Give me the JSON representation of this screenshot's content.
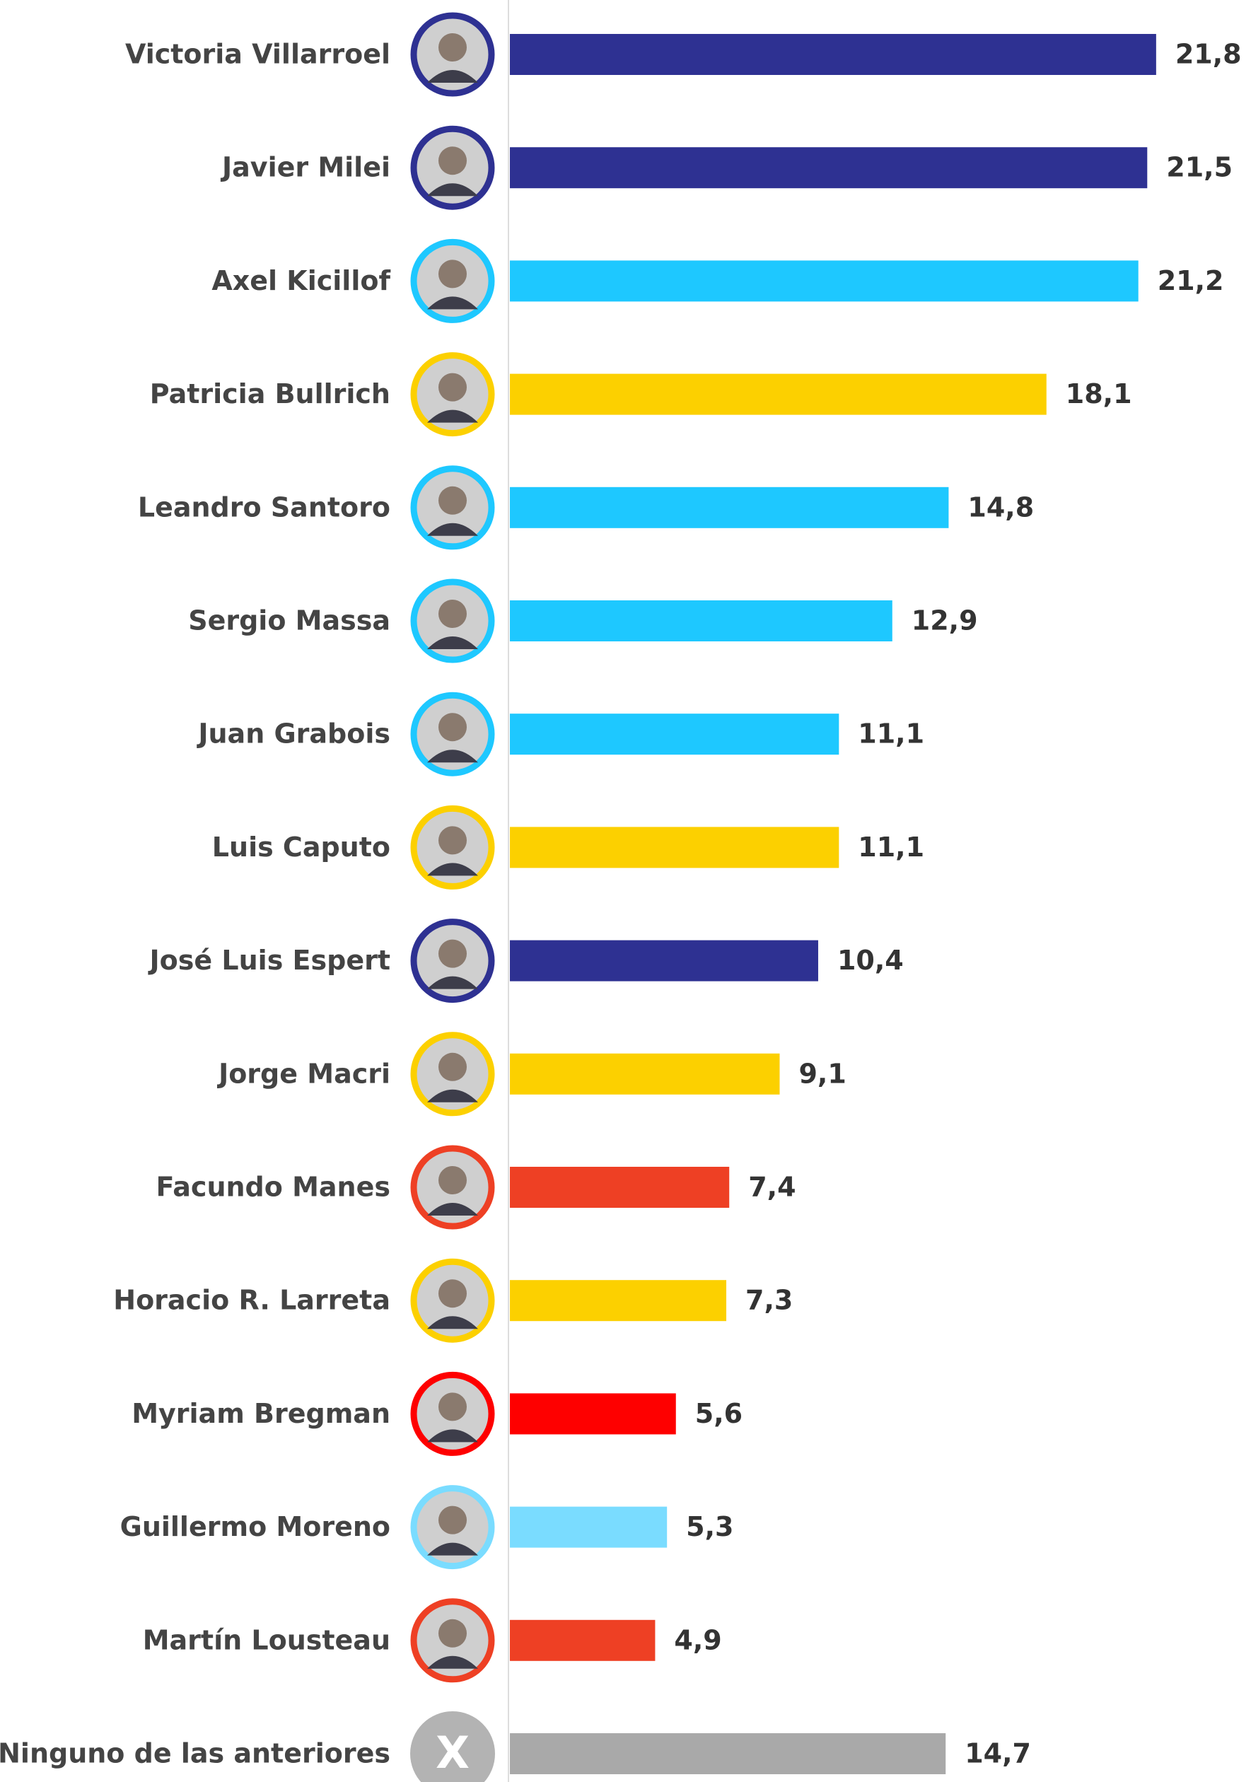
{
  "chart_data": {
    "type": "bar",
    "orientation": "horizontal",
    "categories": [
      "Victoria Villarroel",
      "Javier Milei",
      "Axel Kicillof",
      "Patricia Bullrich",
      "Leandro Santoro",
      "Sergio Massa",
      "Juan Grabois",
      "Luis Caputo",
      "José Luis Espert",
      "Jorge Macri",
      "Facundo Manes",
      "Horacio R. Larreta",
      "Myriam Bregman",
      "Guillermo Moreno",
      "Martín Lousteau",
      "Ninguno de las anteriores"
    ],
    "values": [
      21.8,
      21.5,
      21.2,
      18.1,
      14.8,
      12.9,
      11.1,
      11.1,
      10.4,
      9.1,
      7.4,
      7.3,
      5.6,
      5.3,
      4.9,
      14.7
    ],
    "value_labels": [
      "21,8",
      "21,5",
      "21,2",
      "18,1",
      "14,8",
      "12,9",
      "11,1",
      "11,1",
      "10,4",
      "9,1",
      "7,4",
      "7,3",
      "5,6",
      "5,3",
      "4,9",
      "14,7"
    ],
    "colors": [
      "#2e3192",
      "#2e3192",
      "#1ec8ff",
      "#fcd000",
      "#1ec8ff",
      "#1ec8ff",
      "#1ec8ff",
      "#fcd000",
      "#2e3192",
      "#fcd000",
      "#ee4024",
      "#fcd000",
      "#fe0000",
      "#7adcff",
      "#ee4024",
      "#a9a9a9"
    ],
    "none_icon": "X",
    "xlim": [
      0,
      25
    ]
  }
}
